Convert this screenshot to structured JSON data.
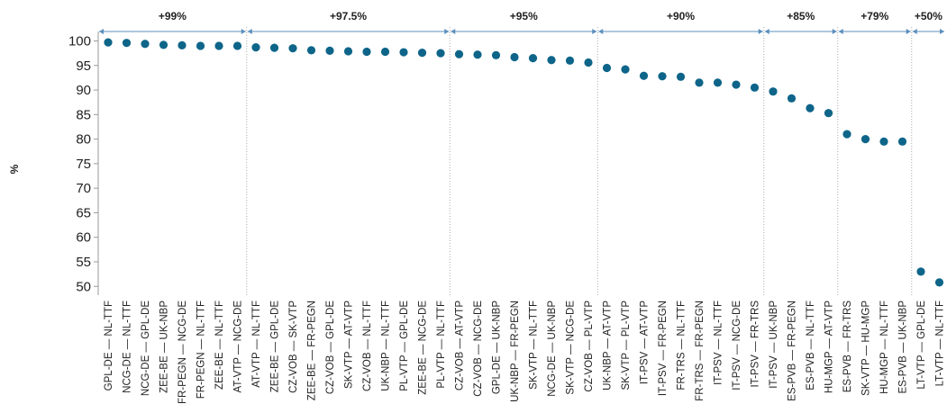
{
  "chart_data": {
    "type": "scatter",
    "ylabel": "%",
    "ylim": [
      49,
      102
    ],
    "yticks": [
      50,
      55,
      60,
      65,
      70,
      75,
      80,
      85,
      90,
      95,
      100
    ],
    "grid": "vertical dotted band separators",
    "colors": {
      "points": "#0e6589",
      "bands": "#5b8fbd",
      "axis": "#999999"
    },
    "categories": [
      "GPL-DE — NL-TTF",
      "NCG-DE — NL-TTF",
      "NCG-DE — GPL-DE",
      "ZEE-BE — UK-NBP",
      "FR-PEGN — NCG-DE",
      "FR-PEGN — NL-TTF",
      "ZEE-BE — NL-TTF",
      "AT-VTP — NCG-DE",
      "AT-VTP — NL-TTF",
      "ZEE-BE — GPL-DE",
      "CZ-VOB — SK-VTP",
      "ZEE-BE — FR-PEGN",
      "CZ-VOB — GPL-DE",
      "SK-VTP — AT-VTP",
      "CZ-VOB — NL-TTF",
      "UK-NBP — NL-TTF",
      "PL-VTP — GPL-DE",
      "ZEE-BE — NCG-DE",
      "PL-VTP — NL-TTF",
      "CZ-VOB — AT-VTP",
      "CZ-VOB — NCG-DE",
      "GPL-DE — UK-NBP",
      "UK-NBP — FR-PEGN",
      "SK-VTP — NL-TTF",
      "NCG-DE — UK-NBP",
      "SK-VTP — NCG-DE",
      "CZ-VOB — PL-VTP",
      "UK-NBP — AT-VTP",
      "SK-VTP — PL-VTP",
      "IT-PSV — AT-VTP",
      "IT-PSV — FR-PEGN",
      "FR-TRS — NL-TTF",
      "FR-TRS — FR-PEGN",
      "IT-PSV — NL-TTF",
      "IT-PSV — NCG-DE",
      "IT-PSV — FR-TRS",
      "IT-PSV — UK-NBP",
      "ES-PVB — FR-PEGN",
      "ES-PVB — NL-TTF",
      "HU-MGP — AT-VTP",
      "ES-PVB — FR-TRS",
      "SK-VTP — HU-MGP",
      "HU-MGP — NL-TTF",
      "ES-PVB — UK-NBP",
      "LT-VTP — GPL-DE",
      "LT-VTP — NL-TTF"
    ],
    "values": [
      99.7,
      99.6,
      99.4,
      99.2,
      99.1,
      99.0,
      99.0,
      99.0,
      98.7,
      98.6,
      98.5,
      98.1,
      98.0,
      97.9,
      97.8,
      97.8,
      97.7,
      97.6,
      97.5,
      97.3,
      97.2,
      97.1,
      96.7,
      96.5,
      96.1,
      96.0,
      95.6,
      94.5,
      94.2,
      92.9,
      92.8,
      92.7,
      91.5,
      91.5,
      91.1,
      90.5,
      89.7,
      88.3,
      86.3,
      85.3,
      81.0,
      80.0,
      79.5,
      79.5,
      53.0,
      50.8
    ],
    "bands": [
      {
        "label": "+99%",
        "start": 0,
        "end": 7
      },
      {
        "label": "+97.5%",
        "start": 8,
        "end": 18
      },
      {
        "label": "+95%",
        "start": 19,
        "end": 26
      },
      {
        "label": "+90%",
        "start": 27,
        "end": 35
      },
      {
        "label": "+85%",
        "start": 36,
        "end": 39
      },
      {
        "label": "+79%",
        "start": 40,
        "end": 43
      },
      {
        "label": "+50%",
        "start": 44,
        "end": 45
      }
    ]
  }
}
